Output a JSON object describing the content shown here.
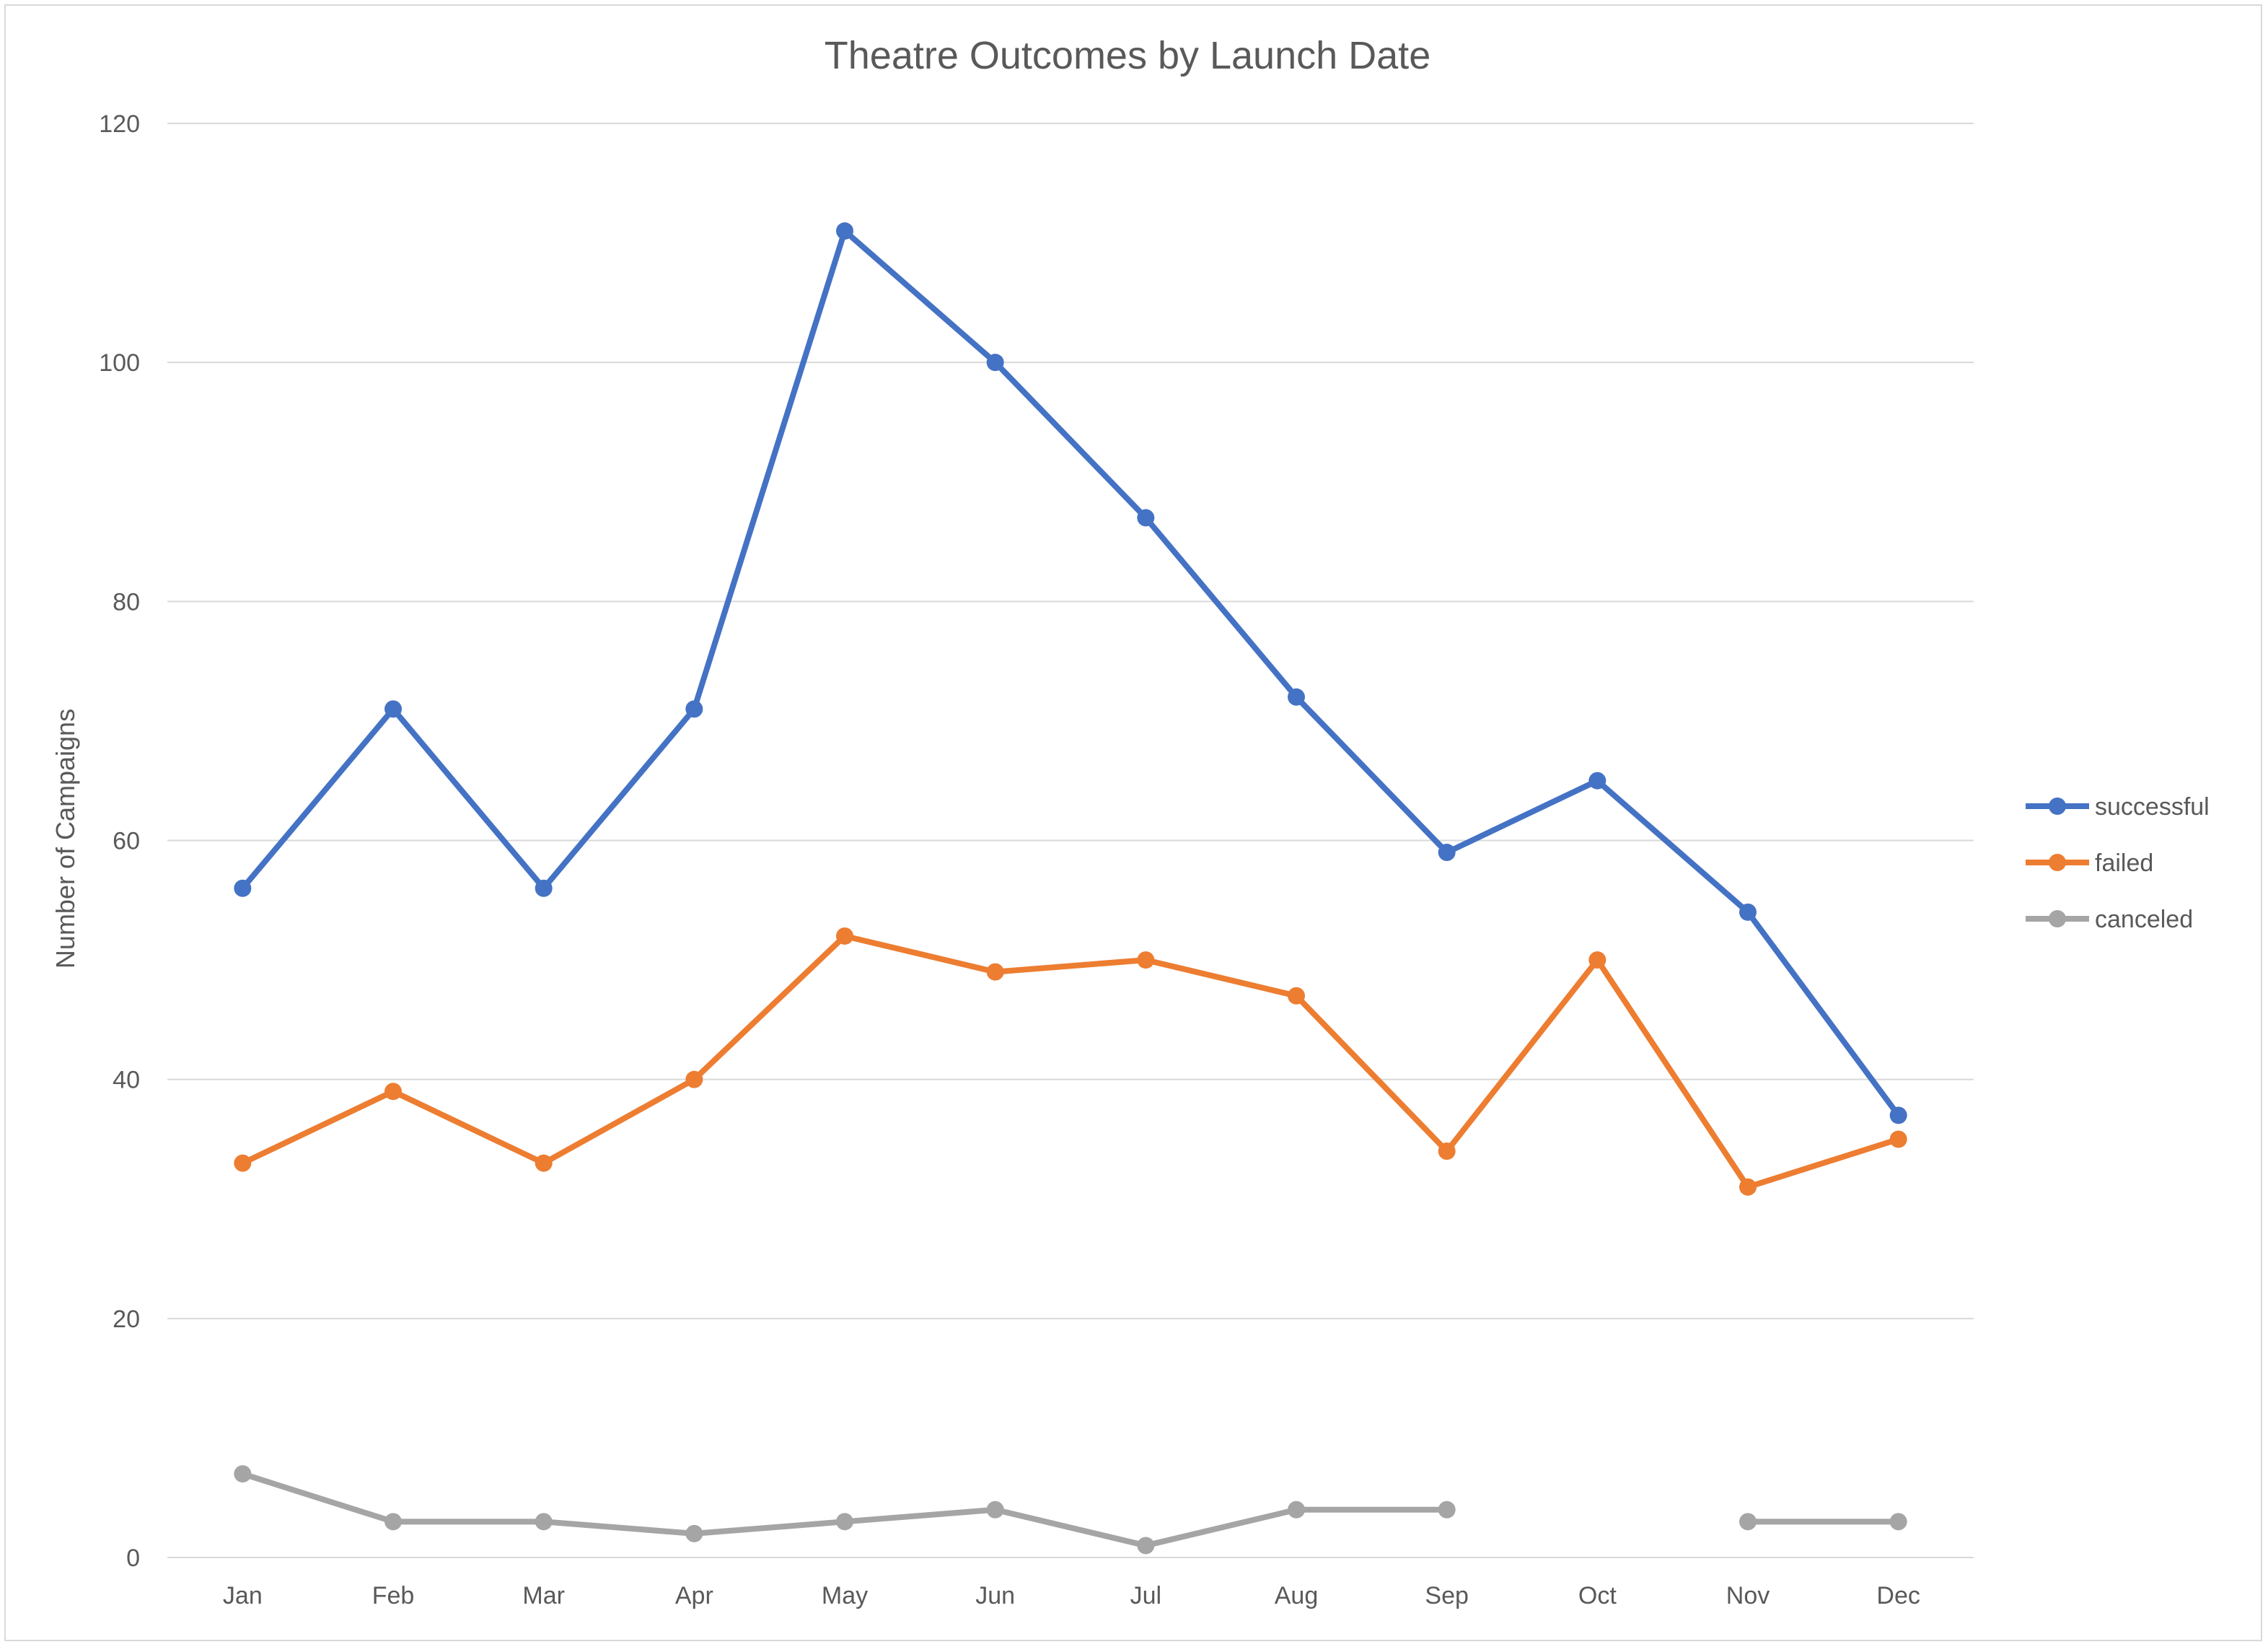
{
  "chart_data": {
    "type": "line",
    "title": "Theatre Outcomes by Launch Date",
    "xlabel": "",
    "ylabel": "Number of Campaigns",
    "categories": [
      "Jan",
      "Feb",
      "Mar",
      "Apr",
      "May",
      "Jun",
      "Jul",
      "Aug",
      "Sep",
      "Oct",
      "Nov",
      "Dec"
    ],
    "ylim": [
      0,
      120
    ],
    "yticks": [
      0,
      20,
      40,
      60,
      80,
      100,
      120
    ],
    "grid": true,
    "legend_position": "right",
    "series": [
      {
        "name": "successful",
        "color": "#4472c4",
        "values": [
          56,
          71,
          56,
          71,
          111,
          100,
          87,
          72,
          59,
          65,
          54,
          37
        ]
      },
      {
        "name": "failed",
        "color": "#ed7d31",
        "values": [
          33,
          39,
          33,
          40,
          52,
          49,
          50,
          47,
          34,
          50,
          31,
          35
        ]
      },
      {
        "name": "canceled",
        "color": "#a5a5a5",
        "values": [
          7,
          3,
          3,
          2,
          3,
          4,
          1,
          4,
          4,
          null,
          3,
          3
        ]
      }
    ]
  }
}
